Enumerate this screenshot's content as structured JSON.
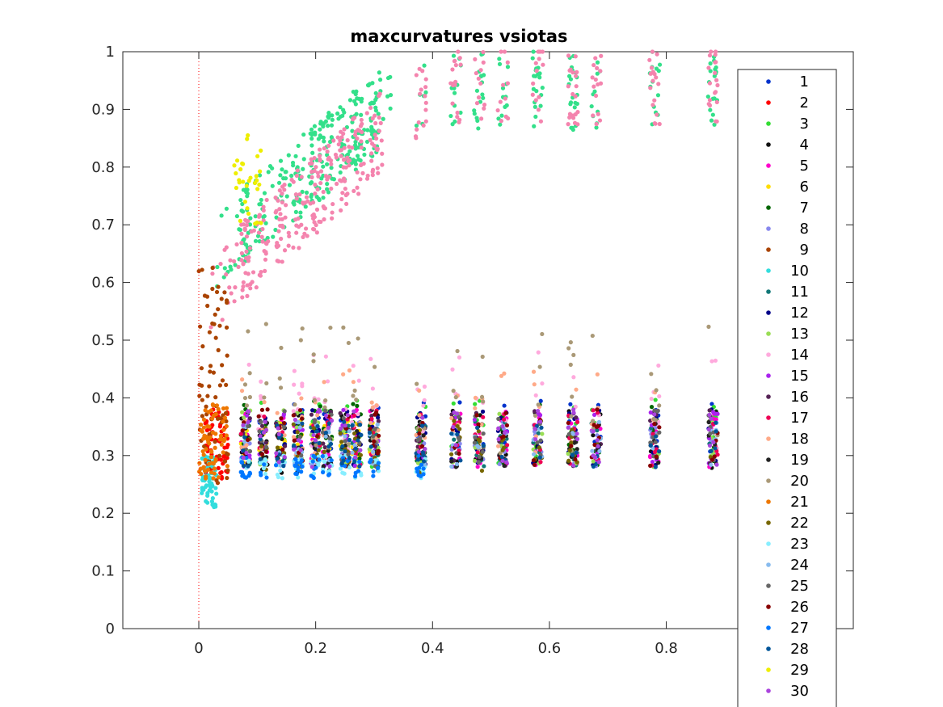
{
  "chart_data": {
    "type": "scatter",
    "title": "maxcurvatures  vsiotas",
    "xlabel": "",
    "ylabel": "",
    "xlim": [
      -0.13,
      1.12
    ],
    "ylim": [
      0,
      1
    ],
    "x_ticks": [
      0,
      0.2,
      0.4,
      0.6,
      0.8
    ],
    "x_tick_labels": [
      "0",
      "0.2",
      "0.4",
      "0.6",
      "0.8"
    ],
    "y_ticks": [
      0,
      0.1,
      0.2,
      0.3,
      0.4,
      0.5,
      0.6,
      0.7,
      0.8,
      0.9,
      1
    ],
    "y_tick_labels": [
      "0",
      "0.1",
      "0.2",
      "0.3",
      "0.4",
      "0.5",
      "0.6",
      "0.7",
      "0.8",
      "0.9",
      "1"
    ],
    "reference_line": {
      "x": 0,
      "color": "#ff0000",
      "style": "dotted"
    },
    "grid": false,
    "legend_position": "right, overlapping the axes",
    "series": [
      {
        "name": "1",
        "color": "#0033cc",
        "band": "lower",
        "iota_range": [
          0.01,
          0.9
        ],
        "maxcurvature_range": [
          0.3,
          0.4
        ]
      },
      {
        "name": "2",
        "color": "#ff0000",
        "band": "lower",
        "iota_range": [
          0.01,
          0.05
        ],
        "maxcurvature_range": [
          0.26,
          0.38
        ]
      },
      {
        "name": "3",
        "color": "#33dd33",
        "band": "lower",
        "iota_range": [
          0.08,
          0.9
        ],
        "maxcurvature_range": [
          0.28,
          0.4
        ]
      },
      {
        "name": "4",
        "color": "#111111",
        "band": "lower",
        "iota_range": [
          0.08,
          0.9
        ],
        "maxcurvature_range": [
          0.27,
          0.38
        ]
      },
      {
        "name": "5",
        "color": "#ff00cc",
        "band": "lower",
        "iota_range": [
          0.08,
          0.9
        ],
        "maxcurvature_range": [
          0.28,
          0.38
        ]
      },
      {
        "name": "6",
        "color": "#ffdd00",
        "band": "lower",
        "iota_range": [
          0.08,
          0.3
        ],
        "maxcurvature_range": [
          0.28,
          0.36
        ]
      },
      {
        "name": "7",
        "color": "#006600",
        "band": "lower",
        "iota_range": [
          0.08,
          0.9
        ],
        "maxcurvature_range": [
          0.28,
          0.4
        ]
      },
      {
        "name": "8",
        "color": "#8888ee",
        "band": "lower",
        "iota_range": [
          0.08,
          0.9
        ],
        "maxcurvature_range": [
          0.28,
          0.36
        ]
      },
      {
        "name": "9",
        "color": "#aa4400",
        "band": "lower",
        "iota_range": [
          0.0,
          0.05
        ],
        "maxcurvature_range": [
          0.25,
          0.63
        ]
      },
      {
        "name": "10",
        "color": "#33dddd",
        "band": "lower",
        "iota_range": [
          0.005,
          0.03
        ],
        "maxcurvature_range": [
          0.21,
          0.3
        ]
      },
      {
        "name": "11",
        "color": "#117777",
        "band": "lower",
        "iota_range": [
          0.08,
          0.9
        ],
        "maxcurvature_range": [
          0.28,
          0.36
        ]
      },
      {
        "name": "12",
        "color": "#000088",
        "band": "lower",
        "iota_range": [
          0.08,
          0.9
        ],
        "maxcurvature_range": [
          0.28,
          0.38
        ]
      },
      {
        "name": "13",
        "color": "#99dd55",
        "band": "lower",
        "iota_range": [
          0.08,
          0.9
        ],
        "maxcurvature_range": [
          0.28,
          0.38
        ]
      },
      {
        "name": "14",
        "color": "#ffaadd",
        "band": "lower",
        "iota_range": [
          0.08,
          0.9
        ],
        "maxcurvature_range": [
          0.3,
          0.48
        ]
      },
      {
        "name": "15",
        "color": "#aa22ee",
        "band": "lower",
        "iota_range": [
          0.08,
          0.9
        ],
        "maxcurvature_range": [
          0.28,
          0.38
        ]
      },
      {
        "name": "16",
        "color": "#552255",
        "band": "lower",
        "iota_range": [
          0.08,
          0.9
        ],
        "maxcurvature_range": [
          0.28,
          0.38
        ]
      },
      {
        "name": "17",
        "color": "#ee0055",
        "band": "lower",
        "iota_range": [
          0.08,
          0.9
        ],
        "maxcurvature_range": [
          0.28,
          0.38
        ]
      },
      {
        "name": "18",
        "color": "#ffaa88",
        "band": "lower",
        "iota_range": [
          0.08,
          0.9
        ],
        "maxcurvature_range": [
          0.3,
          0.45
        ]
      },
      {
        "name": "19",
        "color": "#222222",
        "band": "lower",
        "iota_range": [
          0.08,
          0.9
        ],
        "maxcurvature_range": [
          0.28,
          0.36
        ]
      },
      {
        "name": "20",
        "color": "#aa9977",
        "band": "lower",
        "iota_range": [
          0.08,
          0.9
        ],
        "maxcurvature_range": [
          0.3,
          0.53
        ]
      },
      {
        "name": "21",
        "color": "#ee7700",
        "band": "lower",
        "iota_range": [
          0.0,
          0.05
        ],
        "maxcurvature_range": [
          0.26,
          0.39
        ]
      },
      {
        "name": "22",
        "color": "#776600",
        "band": "lower",
        "iota_range": [
          0.08,
          0.9
        ],
        "maxcurvature_range": [
          0.27,
          0.36
        ]
      },
      {
        "name": "23",
        "color": "#88eeff",
        "band": "lower",
        "iota_range": [
          0.08,
          0.4
        ],
        "maxcurvature_range": [
          0.26,
          0.3
        ]
      },
      {
        "name": "24",
        "color": "#88bbee",
        "band": "lower",
        "iota_range": [
          0.08,
          0.9
        ],
        "maxcurvature_range": [
          0.28,
          0.36
        ]
      },
      {
        "name": "25",
        "color": "#666666",
        "band": "lower",
        "iota_range": [
          0.08,
          0.9
        ],
        "maxcurvature_range": [
          0.28,
          0.38
        ]
      },
      {
        "name": "26",
        "color": "#880000",
        "band": "lower",
        "iota_range": [
          0.08,
          0.9
        ],
        "maxcurvature_range": [
          0.28,
          0.38
        ]
      },
      {
        "name": "27",
        "color": "#0077ff",
        "band": "lower",
        "iota_range": [
          0.08,
          0.4
        ],
        "maxcurvature_range": [
          0.26,
          0.3
        ]
      },
      {
        "name": "28",
        "color": "#005599",
        "band": "lower",
        "iota_range": [
          0.08,
          0.9
        ],
        "maxcurvature_range": [
          0.28,
          0.36
        ]
      },
      {
        "name": "29",
        "color": "#eeee00",
        "band": "upper",
        "iota_range": [
          0.06,
          0.11
        ],
        "maxcurvature_range": [
          0.7,
          0.86
        ]
      },
      {
        "name": "30",
        "color": "#aa44dd",
        "band": "lower",
        "iota_range": [
          0.08,
          0.9
        ],
        "maxcurvature_range": [
          0.28,
          0.38
        ]
      }
    ]
  }
}
